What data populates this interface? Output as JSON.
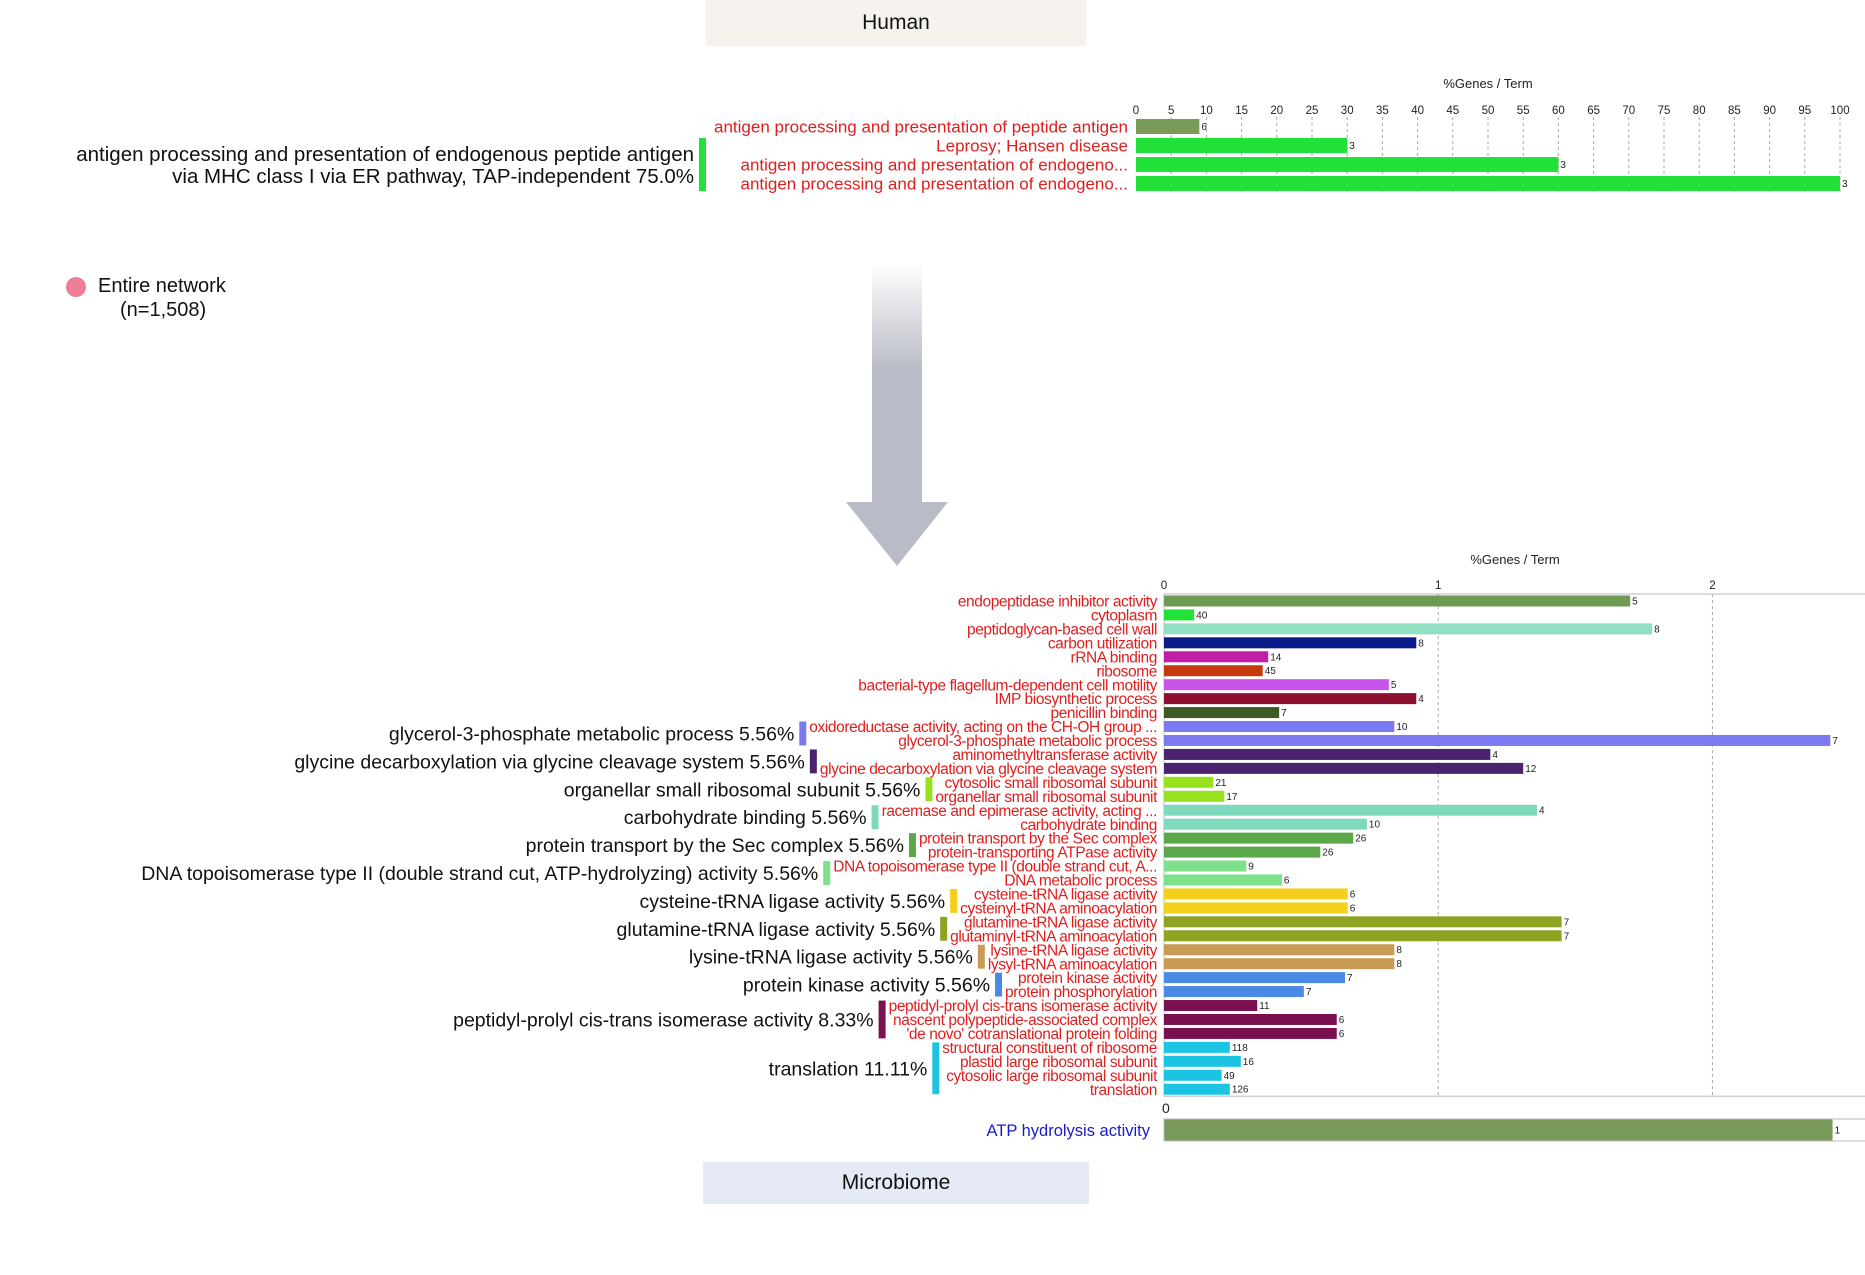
{
  "panels": {
    "human_label": "Human",
    "microbiome_label": "Microbiome"
  },
  "legend": {
    "label": "Entire network",
    "count": "(n=1,508)",
    "dot_color": "#f07d98"
  },
  "chart_data": [
    {
      "type": "bar",
      "orientation": "horizontal",
      "axis_title": "%Genes / Term",
      "xlim": [
        0,
        100
      ],
      "ticks": [
        0,
        5,
        10,
        15,
        20,
        25,
        30,
        35,
        40,
        45,
        50,
        55,
        60,
        65,
        70,
        75,
        80,
        85,
        90,
        95,
        100
      ],
      "grid": true,
      "bars": [
        {
          "label": "antigen processing and presentation of peptide antigen",
          "value": 9,
          "count": "6",
          "color": "#7a9a5a"
        },
        {
          "label": "Leprosy; Hansen disease",
          "value": 30,
          "count": "3",
          "color": "#22e23a"
        },
        {
          "label": "antigen processing and presentation of endogeno...",
          "value": 60,
          "count": "3",
          "color": "#22e23a"
        },
        {
          "label": "antigen processing and presentation of endogeno...",
          "value": 100,
          "count": "3",
          "color": "#22e23a"
        }
      ],
      "groups": [
        {
          "label_lines": [
            "antigen processing and presentation of endogenous peptide antigen",
            "via MHC class I via ER pathway, TAP-independent 75.0%"
          ],
          "start": 1,
          "end": 3,
          "color": "#22e23a"
        }
      ]
    },
    {
      "type": "bar",
      "orientation": "horizontal",
      "axis_title": "%Genes / Term",
      "xlim": [
        0,
        2.56
      ],
      "ticks": [
        0,
        1,
        2
      ],
      "grid": true,
      "bars": [
        {
          "label": "endopeptidase inhibitor activity",
          "value": 1.7,
          "count": "5",
          "color": "#6f9a55"
        },
        {
          "label": "cytoplasm",
          "value": 0.11,
          "count": "40",
          "color": "#22e23a"
        },
        {
          "label": "peptidoglycan-based cell wall",
          "value": 1.78,
          "count": "8",
          "color": "#92e0c4"
        },
        {
          "label": "carbon utilization",
          "value": 0.92,
          "count": "8",
          "color": "#0a1a8a"
        },
        {
          "label": "rRNA binding",
          "value": 0.38,
          "count": "14",
          "color": "#c01ea6"
        },
        {
          "label": "ribosome",
          "value": 0.36,
          "count": "45",
          "color": "#c43a0e"
        },
        {
          "label": "bacterial-type flagellum-dependent cell motility",
          "value": 0.82,
          "count": "5",
          "color": "#c853e8"
        },
        {
          "label": "IMP biosynthetic process",
          "value": 0.92,
          "count": "4",
          "color": "#8e1030"
        },
        {
          "label": "penicillin binding",
          "value": 0.42,
          "count": "7",
          "color": "#3d5a22"
        },
        {
          "label": "oxidoreductase activity, acting on the CH-OH group ...",
          "value": 0.84,
          "count": "10",
          "color": "#7b7af0"
        },
        {
          "label": "glycerol-3-phosphate metabolic process",
          "value": 2.43,
          "count": "7",
          "color": "#7b7af0"
        },
        {
          "label": "aminomethyltransferase activity",
          "value": 1.19,
          "count": "4",
          "color": "#4a2270"
        },
        {
          "label": "glycine decarboxylation via glycine cleavage system",
          "value": 1.31,
          "count": "12",
          "color": "#4a2270"
        },
        {
          "label": "cytosolic small ribosomal subunit",
          "value": 0.18,
          "count": "21",
          "color": "#96e21e"
        },
        {
          "label": "organellar small ribosomal subunit",
          "value": 0.22,
          "count": "17",
          "color": "#96e21e"
        },
        {
          "label": "racemase and epimerase activity, acting ...",
          "value": 1.36,
          "count": "4",
          "color": "#7ed9bd"
        },
        {
          "label": "carbohydrate binding",
          "value": 0.74,
          "count": "10",
          "color": "#7ed9bd"
        },
        {
          "label": "protein transport by the Sec complex",
          "value": 0.69,
          "count": "26",
          "color": "#5aa84a"
        },
        {
          "label": "protein-transporting ATPase activity",
          "value": 0.57,
          "count": "26",
          "color": "#5aa84a"
        },
        {
          "label": "DNA topoisomerase type II (double strand cut, A...",
          "value": 0.3,
          "count": "9",
          "color": "#7de08a"
        },
        {
          "label": "DNA metabolic process",
          "value": 0.43,
          "count": "6",
          "color": "#7de08a"
        },
        {
          "label": "cysteine-tRNA ligase activity",
          "value": 0.67,
          "count": "6",
          "color": "#f4cf1c"
        },
        {
          "label": "cysteinyl-tRNA aminoacylation",
          "value": 0.67,
          "count": "6",
          "color": "#f4cf1c"
        },
        {
          "label": "glutamine-tRNA ligase activity",
          "value": 1.45,
          "count": "7",
          "color": "#8ea322"
        },
        {
          "label": "glutaminyl-tRNA aminoacylation",
          "value": 1.45,
          "count": "7",
          "color": "#8ea322"
        },
        {
          "label": "lysine-tRNA ligase activity",
          "value": 0.84,
          "count": "8",
          "color": "#c99a55"
        },
        {
          "label": "lysyl-tRNA aminoacylation",
          "value": 0.84,
          "count": "8",
          "color": "#c99a55"
        },
        {
          "label": "protein kinase activity",
          "value": 0.66,
          "count": "7",
          "color": "#4a8ae6"
        },
        {
          "label": "protein phosphorylation",
          "value": 0.51,
          "count": "7",
          "color": "#4a8ae6"
        },
        {
          "label": "peptidyl-prolyl cis-trans isomerase activity",
          "value": 0.34,
          "count": "11",
          "color": "#7a1050"
        },
        {
          "label": "nascent polypeptide-associated complex",
          "value": 0.63,
          "count": "6",
          "color": "#7a1050"
        },
        {
          "label": "'de novo' cotranslational protein folding",
          "value": 0.63,
          "count": "6",
          "color": "#7a1050"
        },
        {
          "label": "structural constituent of ribosome",
          "value": 0.24,
          "count": "118",
          "color": "#1ac4e2"
        },
        {
          "label": "plastid large ribosomal subunit",
          "value": 0.28,
          "count": "16",
          "color": "#1ac4e2"
        },
        {
          "label": "cytosolic large ribosomal subunit",
          "value": 0.21,
          "count": "49",
          "color": "#1ac4e2"
        },
        {
          "label": "translation",
          "value": 0.24,
          "count": "126",
          "color": "#1ac4e2"
        }
      ],
      "groups": [
        {
          "label": "glycerol-3-phosphate metabolic process 5.56%",
          "start": 9,
          "end": 10,
          "color": "#7b7af0"
        },
        {
          "label": "glycine decarboxylation via glycine cleavage system 5.56%",
          "start": 11,
          "end": 12,
          "color": "#4a2270"
        },
        {
          "label": "organellar small ribosomal subunit 5.56%",
          "start": 13,
          "end": 14,
          "color": "#96e21e"
        },
        {
          "label": "carbohydrate binding 5.56%",
          "start": 15,
          "end": 16,
          "color": "#7ed9bd"
        },
        {
          "label": "protein transport by the Sec complex 5.56%",
          "start": 17,
          "end": 18,
          "color": "#5aa84a"
        },
        {
          "label": "DNA topoisomerase type II (double strand cut, ATP-hydrolyzing) activity 5.56%",
          "start": 19,
          "end": 20,
          "color": "#7de08a"
        },
        {
          "label": "cysteine-tRNA ligase activity 5.56%",
          "start": 21,
          "end": 22,
          "color": "#f4cf1c"
        },
        {
          "label": "glutamine-tRNA ligase activity 5.56%",
          "start": 23,
          "end": 24,
          "color": "#8ea322"
        },
        {
          "label": "lysine-tRNA ligase activity 5.56%",
          "start": 25,
          "end": 26,
          "color": "#c99a55"
        },
        {
          "label": "protein kinase activity 5.56%",
          "start": 27,
          "end": 28,
          "color": "#4a8ae6"
        },
        {
          "label": "peptidyl-prolyl cis-trans isomerase activity 8.33%",
          "start": 29,
          "end": 31,
          "color": "#7a1050"
        },
        {
          "label": "translation 11.11%",
          "start": 32,
          "end": 35,
          "color": "#1ac4e2"
        }
      ]
    },
    {
      "type": "bar",
      "orientation": "horizontal",
      "ticks": [
        0
      ],
      "xlim": [
        0,
        1.05
      ],
      "bars": [
        {
          "label": "ATP hydrolysis activity",
          "value": 1,
          "count": "1",
          "color": "#7a9a5a"
        }
      ]
    }
  ]
}
